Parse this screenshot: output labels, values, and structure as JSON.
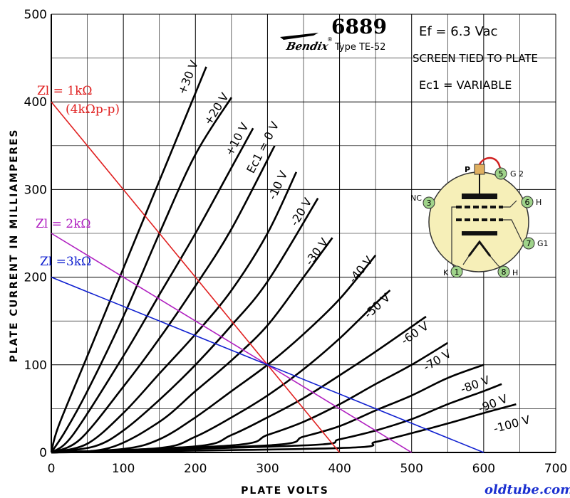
{
  "chart_data": {
    "type": "line",
    "title": "6889",
    "brand": "Bendix",
    "subtitle": "Type TE-52",
    "xlabel": "PLATE VOLTS",
    "ylabel": "PLATE CURRENT IN MILLIAMPERES",
    "xlim": [
      0,
      700
    ],
    "ylim": [
      0,
      500
    ],
    "xticks": [
      0,
      100,
      200,
      300,
      400,
      500,
      600,
      700
    ],
    "yticks": [
      0,
      100,
      200,
      300,
      400,
      500
    ],
    "grid": true,
    "specs": {
      "ef": "Ef = 6.3 Vac",
      "screen": "SCREEN TIED TO PLATE",
      "ec1": "Ec1 = VARIABLE"
    },
    "series": [
      {
        "name": "+30 V",
        "label": "+30 V",
        "x": [
          0,
          10,
          50,
          100,
          150,
          200,
          215
        ],
        "y": [
          0,
          30,
          110,
          210,
          310,
          410,
          440
        ]
      },
      {
        "name": "+20 V",
        "label": "+20 V",
        "x": [
          0,
          20,
          50,
          100,
          150,
          200,
          250
        ],
        "y": [
          0,
          25,
          70,
          155,
          250,
          340,
          405
        ]
      },
      {
        "name": "+10 V",
        "label": "+10 V",
        "x": [
          0,
          30,
          100,
          150,
          200,
          250,
          280
        ],
        "y": [
          0,
          20,
          110,
          180,
          250,
          325,
          370
        ]
      },
      {
        "name": "0 V",
        "label": "Ec1 = 0 V",
        "x": [
          0,
          40,
          100,
          150,
          200,
          250,
          310
        ],
        "y": [
          0,
          15,
          75,
          130,
          190,
          255,
          350
        ]
      },
      {
        "name": "-10 V",
        "label": "-10 V",
        "x": [
          0,
          50,
          100,
          150,
          200,
          250,
          300,
          340
        ],
        "y": [
          0,
          10,
          45,
          90,
          135,
          185,
          250,
          320
        ]
      },
      {
        "name": "-20 V",
        "label": "-20 V",
        "x": [
          0,
          60,
          100,
          150,
          200,
          250,
          300,
          370
        ],
        "y": [
          0,
          7,
          25,
          60,
          100,
          145,
          195,
          290
        ]
      },
      {
        "name": "-30 V",
        "label": "-30 V",
        "x": [
          0,
          80,
          150,
          200,
          250,
          300,
          350,
          390
        ],
        "y": [
          0,
          5,
          35,
          70,
          105,
          145,
          200,
          245
        ]
      },
      {
        "name": "-40 V",
        "label": "-40 V",
        "x": [
          0,
          100,
          150,
          200,
          250,
          300,
          350,
          400,
          450
        ],
        "y": [
          0,
          4,
          15,
          40,
          70,
          100,
          135,
          175,
          225
        ]
      },
      {
        "name": "-50 V",
        "label": "-50 V",
        "x": [
          0,
          150,
          200,
          250,
          300,
          350,
          400,
          450,
          470
        ],
        "y": [
          0,
          5,
          18,
          40,
          65,
          95,
          130,
          170,
          185
        ]
      },
      {
        "name": "-60 V",
        "label": "-60 V",
        "x": [
          0,
          200,
          250,
          300,
          350,
          400,
          450,
          520
        ],
        "y": [
          0,
          7,
          20,
          40,
          62,
          88,
          115,
          155
        ]
      },
      {
        "name": "-70 V",
        "label": "-70 V",
        "x": [
          0,
          250,
          300,
          350,
          400,
          450,
          500,
          550
        ],
        "y": [
          0,
          8,
          20,
          35,
          55,
          78,
          100,
          125
        ]
      },
      {
        "name": "-80 V",
        "label": "-80 V",
        "x": [
          0,
          300,
          350,
          400,
          450,
          500,
          550,
          600
        ],
        "y": [
          0,
          8,
          18,
          30,
          48,
          65,
          85,
          100
        ]
      },
      {
        "name": "-90 V",
        "label": "-90 V",
        "x": [
          0,
          350,
          400,
          450,
          500,
          550,
          600,
          625
        ],
        "y": [
          0,
          8,
          15,
          25,
          38,
          55,
          70,
          78
        ]
      },
      {
        "name": "-100 V",
        "label": "-100 V",
        "x": [
          0,
          400,
          450,
          500,
          550,
          600,
          645
        ],
        "y": [
          0,
          5,
          12,
          22,
          33,
          45,
          55
        ]
      }
    ],
    "load_lines": [
      {
        "name": "Zl = 1kΩ (4kΩp-p)",
        "label1": "Zl = 1kΩ",
        "label2": "(4kΩp-p)",
        "color": "#e02020",
        "x": [
          0,
          400
        ],
        "y": [
          400,
          0
        ]
      },
      {
        "name": "Zl = 2kΩ",
        "label1": "Zl = 2kΩ",
        "color": "#b020c0",
        "x": [
          0,
          500
        ],
        "y": [
          250,
          0
        ]
      },
      {
        "name": "Zl =3kΩ",
        "label1": "Zl =3kΩ",
        "color": "#1020d0",
        "x": [
          0,
          600
        ],
        "y": [
          200,
          0
        ]
      }
    ],
    "pinout": {
      "pins": [
        {
          "num": "1",
          "label": "K"
        },
        {
          "num": "3",
          "label": "NC"
        },
        {
          "num": "5",
          "label": "G 2"
        },
        {
          "num": "6",
          "label": "H"
        },
        {
          "num": "7",
          "label": "G1"
        },
        {
          "num": "8",
          "label": "H"
        }
      ],
      "top_label": "P"
    }
  },
  "watermark": "oldtube.com"
}
